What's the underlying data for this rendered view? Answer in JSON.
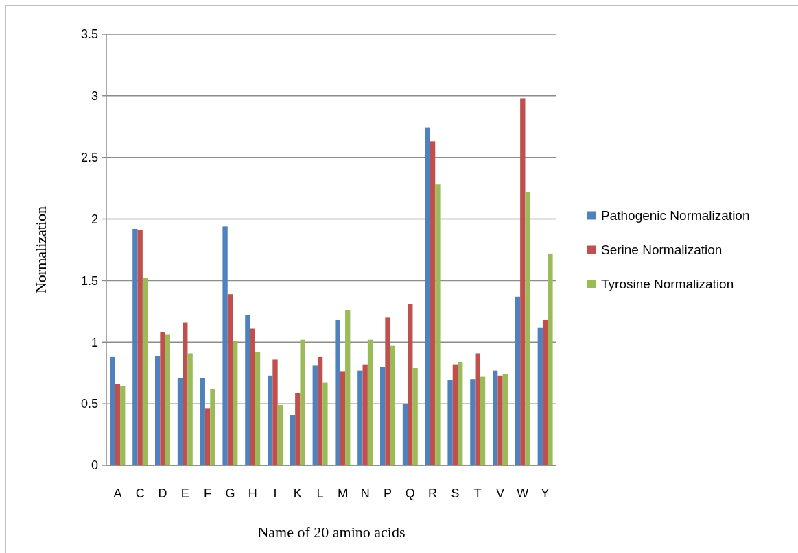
{
  "chart_data": {
    "type": "bar",
    "xlabel": "Name of 20 amino acids",
    "ylabel": "Normalization",
    "categories": [
      "A",
      "C",
      "D",
      "E",
      "F",
      "G",
      "H",
      "I",
      "K",
      "L",
      "M",
      "N",
      "P",
      "Q",
      "R",
      "S",
      "T",
      "V",
      "W",
      "Y"
    ],
    "series": [
      {
        "name": "Pathogenic Normalization",
        "color": "#4f81bd",
        "values": [
          0.88,
          1.92,
          0.89,
          0.71,
          0.71,
          1.94,
          1.22,
          0.73,
          0.41,
          0.81,
          1.18,
          0.77,
          0.8,
          0.5,
          2.74,
          0.69,
          0.7,
          0.77,
          1.37,
          1.12
        ]
      },
      {
        "name": "Serine Normalization",
        "color": "#c0504d",
        "values": [
          0.66,
          1.91,
          1.08,
          1.16,
          0.46,
          1.39,
          1.11,
          0.86,
          0.59,
          0.88,
          0.76,
          0.82,
          1.2,
          1.31,
          2.63,
          0.82,
          0.91,
          0.73,
          2.98,
          1.18
        ]
      },
      {
        "name": "Tyrosine Normalization",
        "color": "#9bbb59",
        "values": [
          0.645,
          1.52,
          1.06,
          0.91,
          0.62,
          1.01,
          0.92,
          0.49,
          1.02,
          0.67,
          1.26,
          1.02,
          0.97,
          0.79,
          2.28,
          0.84,
          0.72,
          0.74,
          2.22,
          1.72
        ]
      }
    ],
    "ylim": [
      0,
      3.5
    ],
    "yticks": [
      0,
      0.5,
      1,
      1.5,
      2,
      2.5,
      3,
      3.5
    ],
    "grid": "y",
    "legend": "right"
  }
}
